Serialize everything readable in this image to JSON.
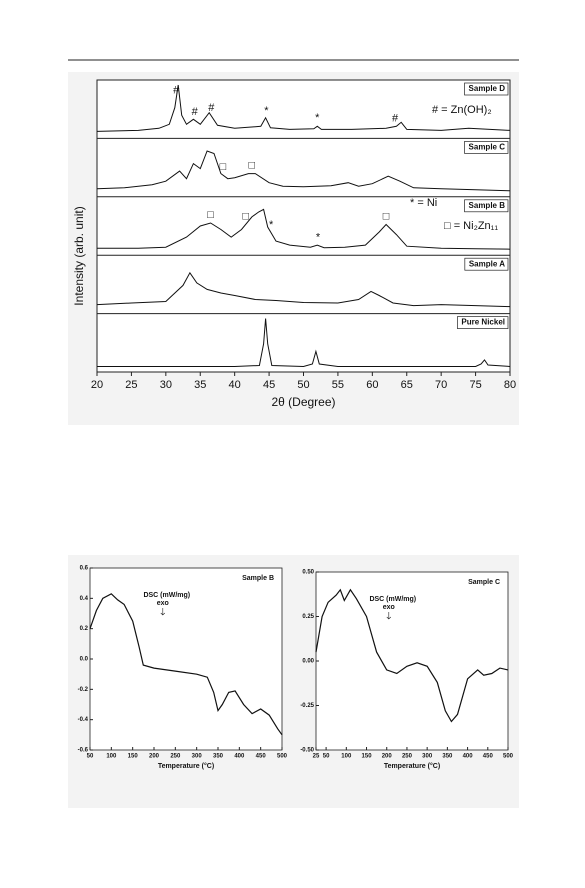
{
  "chart_data": [
    {
      "type": "line",
      "xlabel": "2θ (Degree)",
      "ylabel": "Intensity (arb. unit)",
      "xlim": [
        20,
        80
      ],
      "xticks": [
        20,
        25,
        30,
        35,
        40,
        45,
        50,
        55,
        60,
        65,
        70,
        75,
        80
      ],
      "legend": [
        "# = Zn(OH)₂",
        "* = Ni",
        "□ = Ni₂Zn₁₁"
      ],
      "color": "#111111",
      "panels": [
        {
          "name": "Sample D",
          "x": [
            20,
            26,
            29,
            30.5,
            31.3,
            31.8,
            32.3,
            33,
            34,
            35,
            36.3,
            37.5,
            40,
            43.8,
            44.5,
            45.2,
            48,
            51.5,
            52,
            52.6,
            57,
            62,
            63.5,
            64.2,
            65,
            70,
            74,
            80
          ],
          "values": [
            0.08,
            0.1,
            0.14,
            0.22,
            0.55,
            1.0,
            0.4,
            0.22,
            0.32,
            0.22,
            0.45,
            0.2,
            0.14,
            0.18,
            0.35,
            0.15,
            0.12,
            0.13,
            0.18,
            0.12,
            0.12,
            0.14,
            0.18,
            0.26,
            0.12,
            0.1,
            0.14,
            0.1
          ],
          "markers": [
            {
              "text": "#",
              "x": 31.5
            },
            {
              "text": "#",
              "x": 34.2
            },
            {
              "text": "#",
              "x": 36.6
            },
            {
              "text": "*",
              "x": 44.6
            },
            {
              "text": "*",
              "x": 52
            },
            {
              "text": "#",
              "x": 63.3
            }
          ]
        },
        {
          "name": "Sample C",
          "x": [
            20,
            24,
            28,
            30,
            32,
            33,
            34,
            35,
            36,
            37,
            38,
            39,
            40,
            42,
            43,
            45,
            47,
            50,
            54,
            56.5,
            58,
            60,
            62.3,
            64,
            66,
            70,
            75,
            80
          ],
          "values": [
            0.1,
            0.12,
            0.18,
            0.25,
            0.45,
            0.3,
            0.6,
            0.5,
            0.85,
            0.8,
            0.4,
            0.3,
            0.32,
            0.4,
            0.4,
            0.22,
            0.15,
            0.14,
            0.16,
            0.22,
            0.15,
            0.2,
            0.35,
            0.25,
            0.12,
            0.1,
            0.08,
            0.06
          ],
          "markers": [
            {
              "text": "□",
              "x": 38.3
            },
            {
              "text": "□",
              "x": 42.5
            }
          ]
        },
        {
          "name": "Sample B",
          "x": [
            20,
            26,
            30,
            33,
            35,
            36.5,
            38,
            39.5,
            41,
            42.5,
            43.5,
            44.2,
            44.8,
            46,
            48,
            51,
            52,
            53,
            56,
            59,
            61,
            62,
            63.5,
            65,
            70,
            75,
            80
          ],
          "values": [
            0.08,
            0.08,
            0.1,
            0.3,
            0.52,
            0.58,
            0.45,
            0.3,
            0.45,
            0.7,
            0.8,
            0.85,
            0.5,
            0.22,
            0.14,
            0.1,
            0.14,
            0.09,
            0.1,
            0.14,
            0.4,
            0.55,
            0.35,
            0.12,
            0.08,
            0.07,
            0.06
          ],
          "markers": [
            {
              "text": "□",
              "x": 36.5
            },
            {
              "text": "□",
              "x": 41.6
            },
            {
              "text": "*",
              "x": 45.3
            },
            {
              "text": "*",
              "x": 52.1
            },
            {
              "text": "□",
              "x": 62
            }
          ]
        },
        {
          "name": "Sample A",
          "x": [
            20,
            25,
            30,
            32.5,
            33.5,
            34.5,
            36,
            38,
            40,
            43,
            46,
            50,
            55,
            58,
            59.8,
            61,
            63,
            66,
            70,
            75,
            80
          ],
          "values": [
            0.12,
            0.15,
            0.18,
            0.5,
            0.75,
            0.55,
            0.42,
            0.35,
            0.3,
            0.22,
            0.2,
            0.16,
            0.15,
            0.22,
            0.38,
            0.3,
            0.15,
            0.1,
            0.12,
            0.1,
            0.08
          ],
          "markers": []
        },
        {
          "name": "Pure Nickel",
          "x": [
            20,
            30,
            40,
            43.6,
            44.2,
            44.5,
            44.8,
            45.4,
            50,
            51.3,
            51.8,
            52.3,
            55,
            65,
            75,
            75.8,
            76.3,
            76.8,
            80
          ],
          "values": [
            0.05,
            0.05,
            0.05,
            0.07,
            0.5,
            1.0,
            0.5,
            0.07,
            0.05,
            0.1,
            0.35,
            0.1,
            0.05,
            0.05,
            0.05,
            0.1,
            0.18,
            0.08,
            0.05
          ],
          "markers": []
        }
      ]
    },
    {
      "type": "line",
      "title": "Sample B",
      "annotations": [
        "DSC (mW/mg)",
        "exo"
      ],
      "xlabel": "Temperature (°C)",
      "xlim": [
        50,
        500
      ],
      "xticks": [
        50,
        100,
        150,
        200,
        250,
        300,
        350,
        400,
        450,
        500
      ],
      "ylim": [
        -0.6,
        0.6
      ],
      "yticks": [
        -0.6,
        -0.4,
        -0.2,
        {
          "value": 0,
          "label": "0.0"
        },
        0.2,
        0.4,
        0.6
      ],
      "series": [
        {
          "color": "#111111",
          "x": [
            50,
            65,
            80,
            100,
            115,
            130,
            150,
            165,
            175,
            200,
            250,
            300,
            325,
            340,
            350,
            360,
            375,
            390,
            410,
            430,
            450,
            470,
            490,
            500
          ],
          "values": [
            0.2,
            0.32,
            0.4,
            0.43,
            0.39,
            0.36,
            0.25,
            0.08,
            -0.04,
            -0.06,
            -0.08,
            -0.1,
            -0.12,
            -0.22,
            -0.34,
            -0.3,
            -0.22,
            -0.21,
            -0.3,
            -0.36,
            -0.33,
            -0.37,
            -0.46,
            -0.5
          ]
        }
      ]
    },
    {
      "type": "line",
      "title": "Sample C",
      "annotations": [
        "DSC (mW/mg)",
        "exo"
      ],
      "xlabel": "Temperature (°C)",
      "xlim": [
        25,
        500
      ],
      "xticks": [
        25,
        50,
        100,
        150,
        200,
        250,
        300,
        350,
        400,
        450,
        500
      ],
      "ylim": [
        -0.5,
        0.5
      ],
      "yticks": [
        {
          "value": -0.5,
          "label": "-0.50"
        },
        {
          "value": -0.25,
          "label": "-0.25"
        },
        {
          "value": 0,
          "label": "0.00"
        },
        {
          "value": 0.25,
          "label": "0.25"
        },
        {
          "value": 0.5,
          "label": "0.50"
        }
      ],
      "series": [
        {
          "color": "#111111",
          "x": [
            25,
            40,
            55,
            75,
            85,
            95,
            110,
            125,
            150,
            175,
            200,
            225,
            250,
            275,
            300,
            325,
            345,
            360,
            375,
            400,
            425,
            440,
            460,
            480,
            500
          ],
          "values": [
            0.05,
            0.25,
            0.33,
            0.37,
            0.4,
            0.34,
            0.4,
            0.35,
            0.25,
            0.05,
            -0.05,
            -0.07,
            -0.03,
            -0.01,
            -0.03,
            -0.12,
            -0.28,
            -0.34,
            -0.3,
            -0.1,
            -0.05,
            -0.08,
            -0.07,
            -0.04,
            -0.05
          ]
        }
      ]
    }
  ]
}
